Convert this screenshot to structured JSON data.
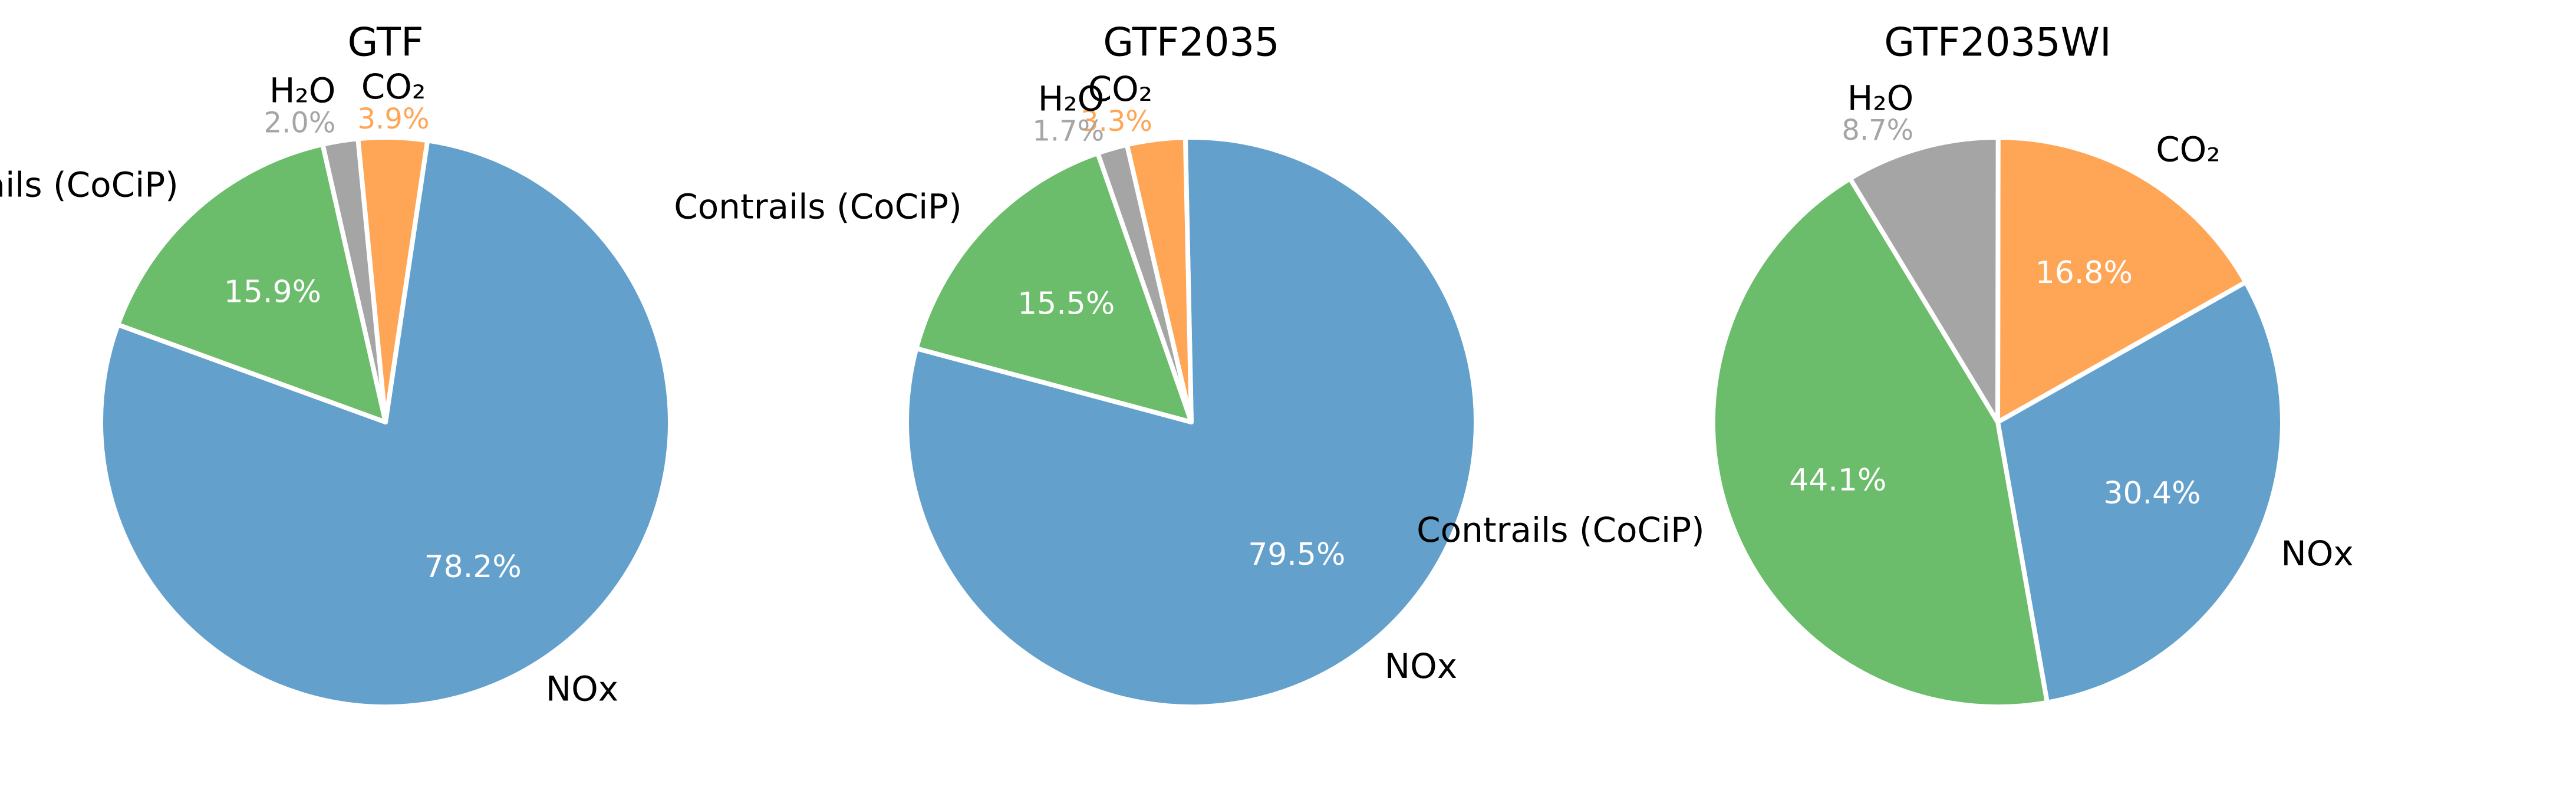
{
  "chart_data": [
    {
      "type": "pie",
      "title": "GTF",
      "slices": [
        {
          "label": "NOx",
          "value": 78.2,
          "pct_text": "78.2%",
          "color": "#63a0cb",
          "label_pos": "outside",
          "pct_pos": "inside"
        },
        {
          "label": "CO₂",
          "value": 3.9,
          "pct_text": "3.9%",
          "color": "#ffa556",
          "label_pos": "outside",
          "pct_pos": "outside"
        },
        {
          "label": "H₂O",
          "value": 2.0,
          "pct_text": "2.0%",
          "color": "#a5a5a5",
          "label_pos": "outside",
          "pct_pos": "outside"
        },
        {
          "label": "Contrails (CoCiP)",
          "value": 15.9,
          "pct_text": "15.9%",
          "color": "#6bbc6b",
          "label_pos": "outside",
          "pct_pos": "inside"
        }
      ]
    },
    {
      "type": "pie",
      "title": "GTF2035",
      "slices": [
        {
          "label": "NOx",
          "value": 79.5,
          "pct_text": "79.5%",
          "color": "#63a0cb",
          "label_pos": "outside",
          "pct_pos": "inside"
        },
        {
          "label": "CO₂",
          "value": 3.3,
          "pct_text": "3.3%",
          "color": "#ffa556",
          "label_pos": "outside",
          "pct_pos": "outside"
        },
        {
          "label": "H₂O",
          "value": 1.7,
          "pct_text": "1.7%",
          "color": "#a5a5a5",
          "label_pos": "outside",
          "pct_pos": "outside"
        },
        {
          "label": "Contrails (CoCiP)",
          "value": 15.5,
          "pct_text": "15.5%",
          "color": "#6bbc6b",
          "label_pos": "outside",
          "pct_pos": "inside"
        }
      ]
    },
    {
      "type": "pie",
      "title": "GTF2035WI",
      "slices": [
        {
          "label": "NOx",
          "value": 30.4,
          "pct_text": "30.4%",
          "color": "#63a0cb",
          "label_pos": "outside",
          "pct_pos": "inside"
        },
        {
          "label": "CO₂",
          "value": 16.8,
          "pct_text": "16.8%",
          "color": "#ffa556",
          "label_pos": "outside",
          "pct_pos": "inside"
        },
        {
          "label": "H₂O",
          "value": 8.7,
          "pct_text": "8.7%",
          "color": "#a5a5a5",
          "label_pos": "outside",
          "pct_pos": "outside"
        },
        {
          "label": "Contrails (CoCiP)",
          "value": 44.1,
          "pct_text": "44.1%",
          "color": "#6bbc6b",
          "label_pos": "outside",
          "pct_pos": "inside"
        }
      ]
    }
  ]
}
